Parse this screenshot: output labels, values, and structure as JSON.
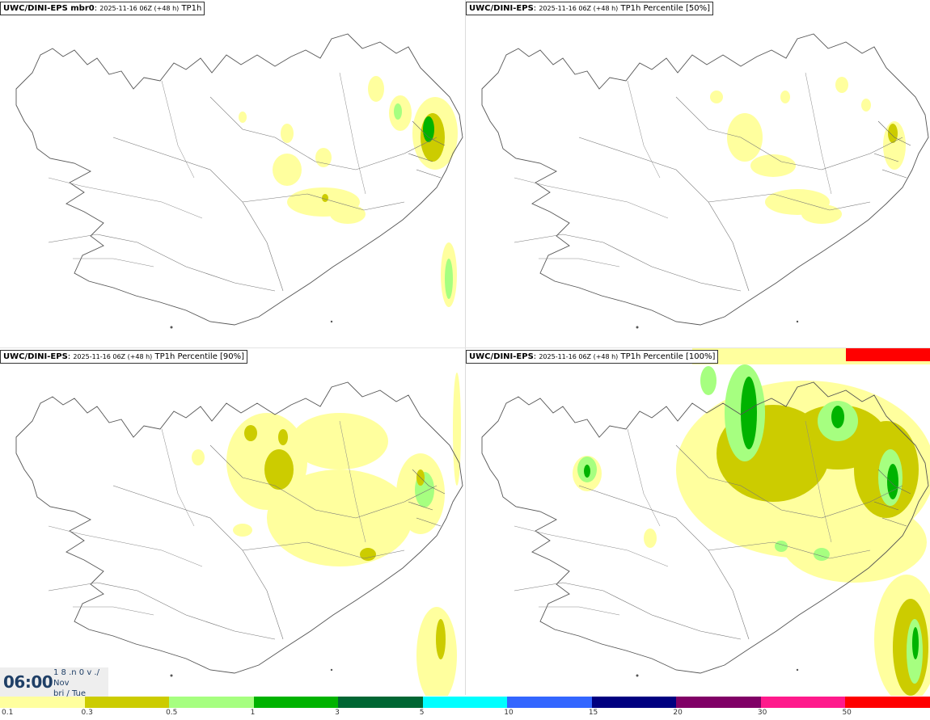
{
  "panels": [
    {
      "model": "UWC/DINI-EPS mbr0",
      "run": "2025-11-16 06Z (+48 h)",
      "field": "TP1h"
    },
    {
      "model": "UWC/DINI-EPS",
      "run": "2025-11-16 06Z (+48 h)",
      "field": "TP1h Percentile [50%]"
    },
    {
      "model": "UWC/DINI-EPS",
      "run": "2025-11-16 06Z (+48 h)",
      "field": "TP1h Percentile [90%]"
    },
    {
      "model": "UWC/DINI-EPS",
      "run": "2025-11-16 06Z (+48 h)",
      "field": "TP1h Percentile [100%]"
    }
  ],
  "time_label": {
    "time": "06:00",
    "line1": "1 8 .n 0 v ./",
    "line2": "Nov",
    "line3": "bri / Tue"
  },
  "legend": {
    "colors": [
      "#ffff9e",
      "#cccc00",
      "#a6ff80",
      "#00b300",
      "#006633",
      "#00ffff",
      "#3366ff",
      "#000080",
      "#800066",
      "#ff1a8c",
      "#ff0000"
    ],
    "labels": [
      "0.1",
      "0.3",
      "0.5",
      "1",
      "3",
      "5",
      "10",
      "15",
      "20",
      "30",
      "50"
    ]
  },
  "style_colors": {
    "light_yellow": "#ffff9e",
    "olive": "#cccc00",
    "light_green": "#a6ff80",
    "green": "#00b300",
    "dark_green": "#006633",
    "coast": "#555555"
  }
}
